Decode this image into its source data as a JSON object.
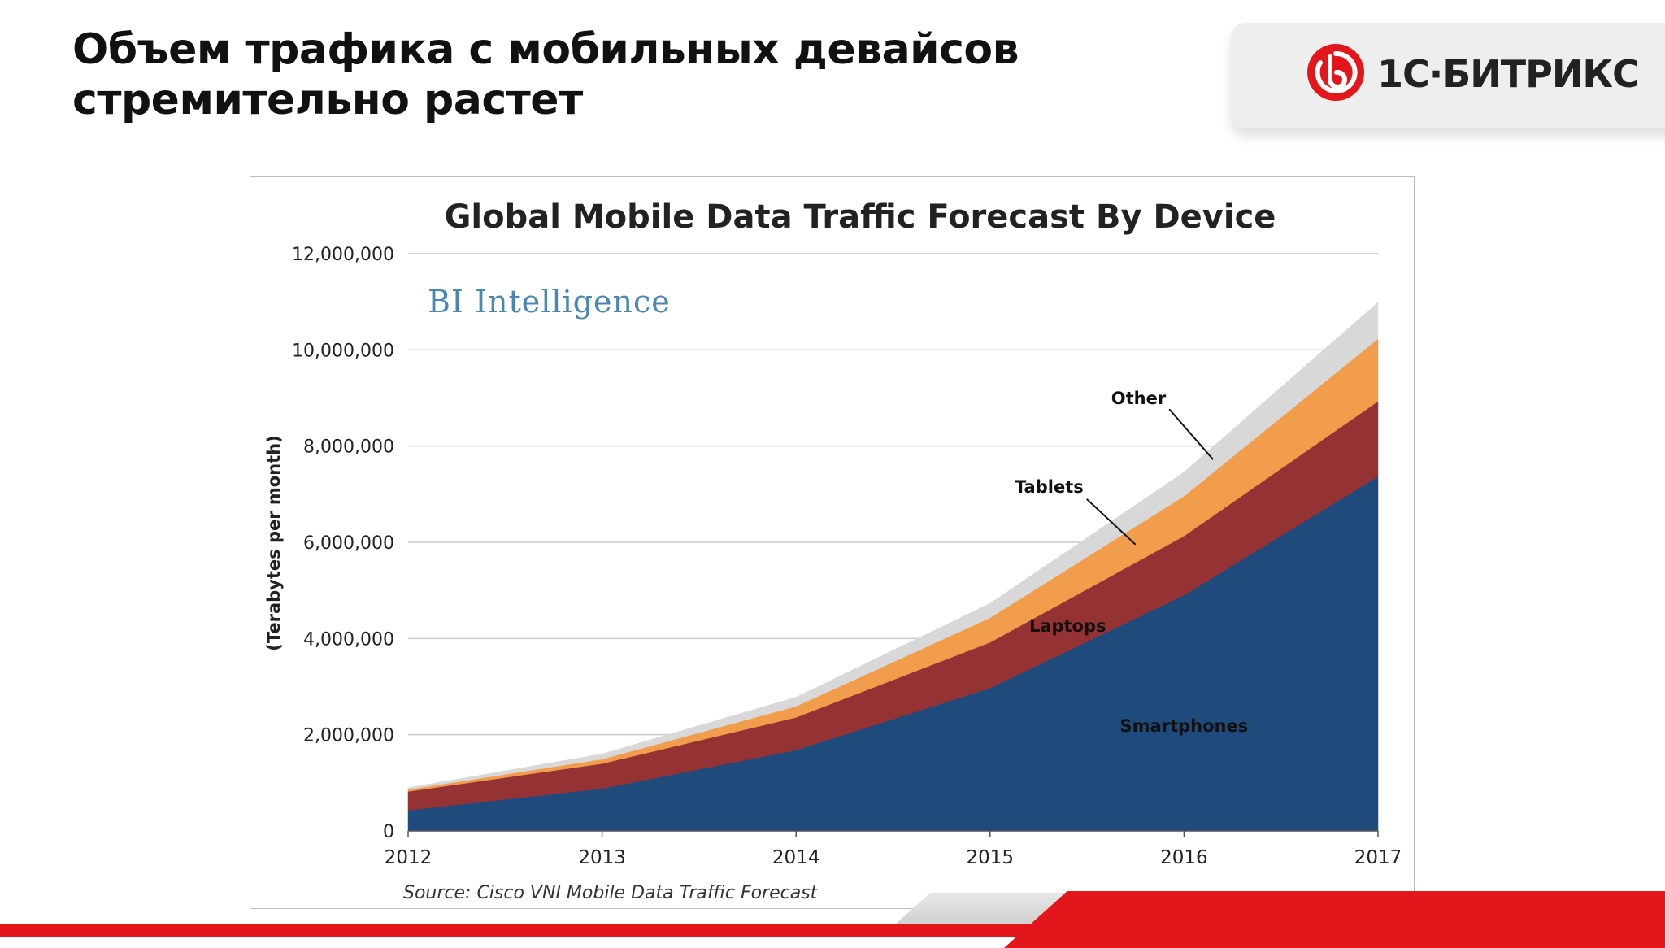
{
  "slide": {
    "title_line1": "Объем трафика с мобильных девайсов",
    "title_line2": "стремительно растет"
  },
  "logo": {
    "text": "1С·БИТРИКС",
    "color": "#e3161c"
  },
  "chart_data": {
    "type": "area",
    "stacked": true,
    "title": "Global Mobile Data Traffic Forecast By Device",
    "ylabel": "(Terabytes per month)",
    "xlabel": "",
    "watermark": "BI Intelligence",
    "source": "Source: Cisco VNI Mobile Data Traffic Forecast",
    "x": [
      2012,
      2013,
      2014,
      2015,
      2016,
      2017
    ],
    "x_tick_labels": [
      "2012",
      "2013",
      "2014",
      "2015",
      "2016",
      "2017"
    ],
    "ylim": [
      0,
      12000000
    ],
    "y_ticks": [
      0,
      2000000,
      4000000,
      6000000,
      8000000,
      10000000,
      12000000
    ],
    "y_tick_labels": [
      "0",
      "2,000,000",
      "4,000,000",
      "6,000,000",
      "8,000,000",
      "10,000,000",
      "12,000,000"
    ],
    "grid": true,
    "series": [
      {
        "name": "Smartphones",
        "color": "#1f4a7c",
        "values": [
          430000,
          880000,
          1680000,
          2970000,
          4900000,
          7370000
        ]
      },
      {
        "name": "Laptops",
        "color": "#943234",
        "values": [
          390000,
          520000,
          680000,
          950000,
          1230000,
          1560000
        ]
      },
      {
        "name": "Tablets",
        "color": "#f29d4b",
        "values": [
          40000,
          90000,
          230000,
          510000,
          830000,
          1300000
        ]
      },
      {
        "name": "Other",
        "color": "#d8d8d8",
        "values": [
          40000,
          110000,
          190000,
          300000,
          500000,
          760000
        ]
      }
    ],
    "annotations": [
      {
        "label": "Smartphones",
        "series": "Smartphones"
      },
      {
        "label": "Laptops",
        "series": "Laptops"
      },
      {
        "label": "Tablets",
        "series": "Tablets"
      },
      {
        "label": "Other",
        "series": "Other"
      }
    ]
  }
}
